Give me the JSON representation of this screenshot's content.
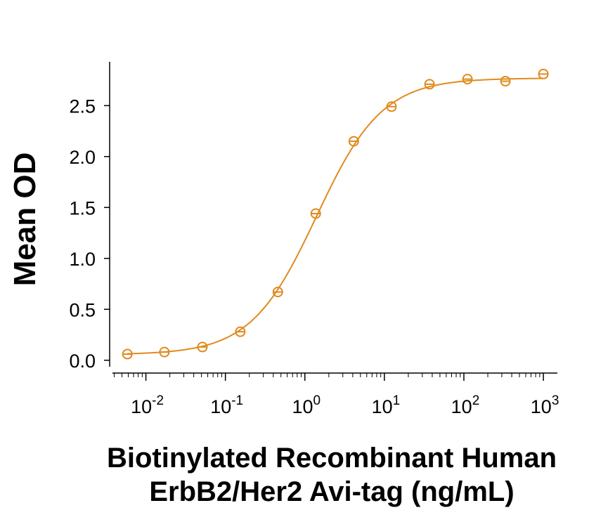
{
  "chart_data": {
    "type": "scatter",
    "title": "",
    "ylabel": "Mean OD",
    "xlabel_lines": [
      "Biotinylated Recombinant Human",
      "ErbB2/Her2 Avi-tag (ng/mL)"
    ],
    "x_scale": "log10",
    "xlim": [
      0.0035,
      1500
    ],
    "ylim": [
      -0.05,
      2.93
    ],
    "x_ticks": [
      {
        "base": "10",
        "exp": "-2",
        "value": 0.01
      },
      {
        "base": "10",
        "exp": "-1",
        "value": 0.1
      },
      {
        "base": "10",
        "exp": "0",
        "value": 1
      },
      {
        "base": "10",
        "exp": "1",
        "value": 10
      },
      {
        "base": "10",
        "exp": "2",
        "value": 100
      },
      {
        "base": "10",
        "exp": "3",
        "value": 1000
      }
    ],
    "y_ticks": [
      {
        "label": "0.0",
        "value": 0.0
      },
      {
        "label": "0.5",
        "value": 0.5
      },
      {
        "label": "1.0",
        "value": 1.0
      },
      {
        "label": "1.5",
        "value": 1.5
      },
      {
        "label": "2.0",
        "value": 2.0
      },
      {
        "label": "2.5",
        "value": 2.5
      }
    ],
    "color": "#E08A1E",
    "grid": false,
    "series": [
      {
        "x": [
          0.00585,
          0.0171,
          0.0514,
          0.154,
          0.457,
          1.37,
          4.12,
          12.3,
          37.0,
          111,
          333,
          1000
        ],
        "y": [
          0.06,
          0.08,
          0.13,
          0.28,
          0.67,
          1.44,
          2.15,
          2.49,
          2.71,
          2.76,
          2.74,
          2.81
        ]
      }
    ],
    "fit": {
      "model": "4PL",
      "bottom": 0.055,
      "top": 2.77,
      "ec50": 1.4,
      "hill": 1.05
    }
  }
}
